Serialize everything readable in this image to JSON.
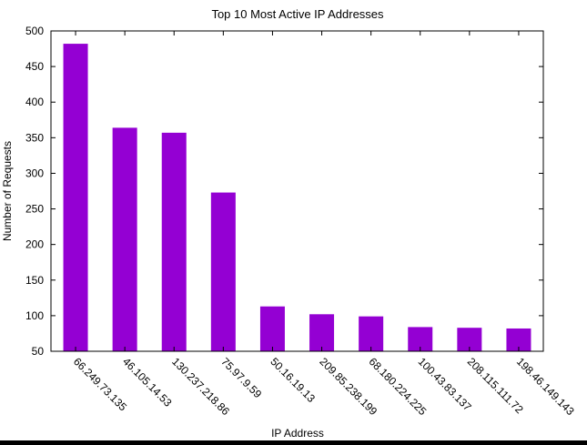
{
  "chart_data": {
    "type": "bar",
    "title": "Top 10 Most Active IP Addresses",
    "xlabel": "IP Address",
    "ylabel": "Number of Requests",
    "categories": [
      "66.249.73.135",
      "46.105.14.53",
      "130.237.218.86",
      "75.97.9.59",
      "50.16.19.13",
      "209.85.238.199",
      "68.180.224.225",
      "100.43.83.137",
      "208.115.111.72",
      "198.46.149.143"
    ],
    "values": [
      482,
      364,
      357,
      273,
      113,
      102,
      99,
      84,
      83,
      82
    ],
    "ylim": [
      50,
      500
    ],
    "yticks": [
      "50",
      "100",
      "150",
      "200",
      "250",
      "300",
      "350",
      "400",
      "450",
      "500"
    ],
    "bar_color": "#9400d3",
    "grid": false,
    "legend": "none"
  }
}
